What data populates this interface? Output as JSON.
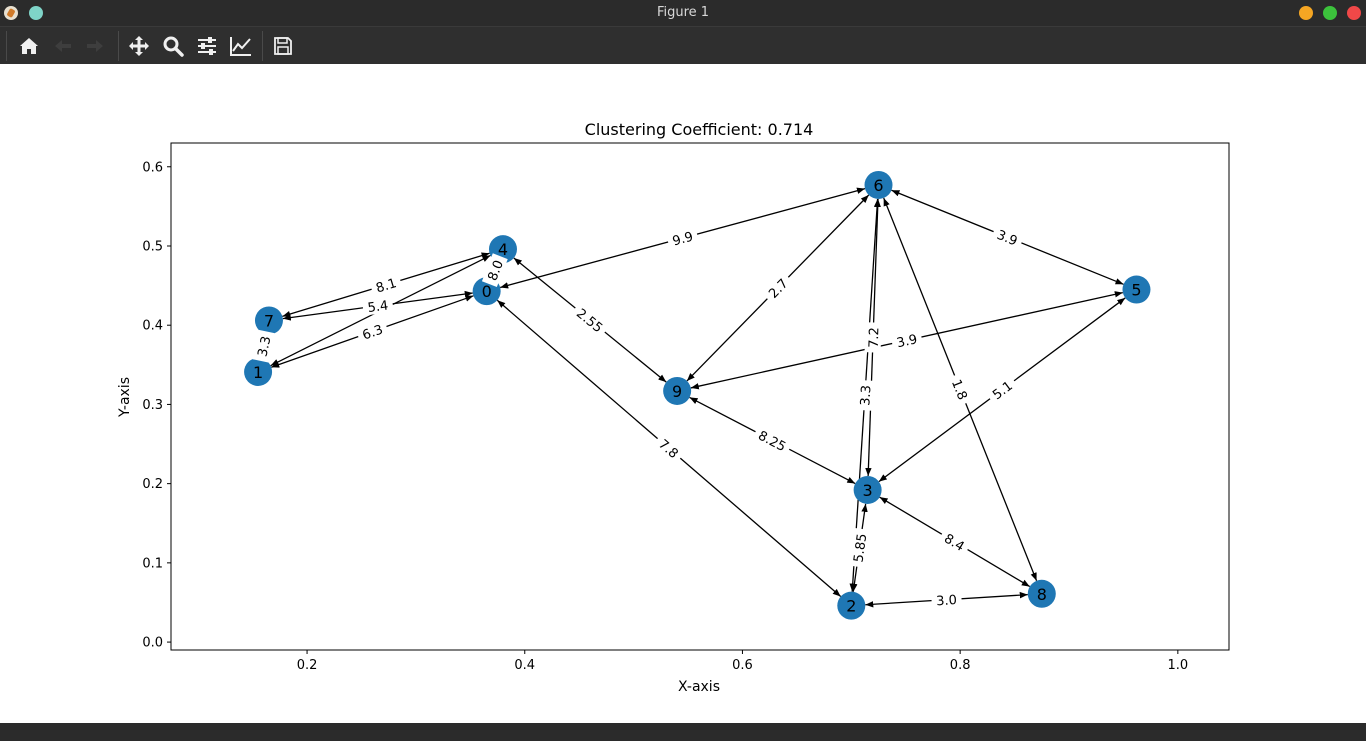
{
  "window": {
    "title": "Figure 1"
  },
  "toolbar": {
    "buttons": [
      {
        "name": "home-button",
        "icon": "home-icon"
      },
      {
        "name": "back-button",
        "icon": "arrow-left-icon"
      },
      {
        "name": "forward-button",
        "icon": "arrow-right-icon"
      },
      {
        "name": "pan-button",
        "icon": "move-icon"
      },
      {
        "name": "zoom-button",
        "icon": "search-icon"
      },
      {
        "name": "configure-subplots-button",
        "icon": "sliders-icon"
      },
      {
        "name": "edit-axis-button",
        "icon": "chart-line-icon"
      },
      {
        "name": "save-button",
        "icon": "floppy-disk-icon"
      }
    ]
  },
  "colors": {
    "node": "#1f77b4",
    "edge": "#000000",
    "titlebar": "#2b2b2b",
    "toolbar": "#2f2f2f"
  },
  "chart_data": {
    "type": "scatter",
    "title": "Clustering Coefficient: 0.714",
    "xlabel": "X-axis",
    "ylabel": "Y-axis",
    "xlim": [
      0.075,
      1.047
    ],
    "ylim": [
      -0.01,
      0.63
    ],
    "xticks": [
      "0.2",
      "0.4",
      "0.6",
      "0.8",
      "1.0"
    ],
    "yticks": [
      "0.0",
      "0.1",
      "0.2",
      "0.3",
      "0.4",
      "0.5",
      "0.6"
    ],
    "grid": false,
    "nodes": [
      {
        "id": "0",
        "x": 0.365,
        "y": 0.443
      },
      {
        "id": "1",
        "x": 0.155,
        "y": 0.341
      },
      {
        "id": "2",
        "x": 0.7,
        "y": 0.046
      },
      {
        "id": "3",
        "x": 0.715,
        "y": 0.192
      },
      {
        "id": "4",
        "x": 0.38,
        "y": 0.496
      },
      {
        "id": "5",
        "x": 0.962,
        "y": 0.445
      },
      {
        "id": "6",
        "x": 0.725,
        "y": 0.577
      },
      {
        "id": "7",
        "x": 0.165,
        "y": 0.406
      },
      {
        "id": "8",
        "x": 0.875,
        "y": 0.061
      },
      {
        "id": "9",
        "x": 0.54,
        "y": 0.317
      }
    ],
    "edges": [
      {
        "source": "4",
        "target": "7",
        "label": "8.1"
      },
      {
        "source": "0",
        "target": "7",
        "label": "5.4"
      },
      {
        "source": "1",
        "target": "0",
        "label": "6.3"
      },
      {
        "source": "4",
        "target": "1",
        "label": ""
      },
      {
        "source": "7",
        "target": "1",
        "label": "3.3"
      },
      {
        "source": "4",
        "target": "0",
        "label": "8.0"
      },
      {
        "source": "6",
        "target": "0",
        "label": "9.9"
      },
      {
        "source": "0",
        "target": "2",
        "label": "7.8"
      },
      {
        "source": "4",
        "target": "9",
        "label": "2.55"
      },
      {
        "source": "6",
        "target": "9",
        "label": "2.7"
      },
      {
        "source": "5",
        "target": "9",
        "label": "3.9"
      },
      {
        "source": "9",
        "target": "3",
        "label": "8.25"
      },
      {
        "source": "5",
        "target": "6",
        "label": "3.9"
      },
      {
        "source": "6",
        "target": "3",
        "label": "7.2"
      },
      {
        "source": "6",
        "target": "2",
        "label": "3.3"
      },
      {
        "source": "6",
        "target": "8",
        "label": "1.8"
      },
      {
        "source": "5",
        "target": "3",
        "label": "5.1"
      },
      {
        "source": "3",
        "target": "8",
        "label": "8.4"
      },
      {
        "source": "2",
        "target": "3",
        "label": "5.85"
      },
      {
        "source": "2",
        "target": "8",
        "label": "3.0"
      }
    ]
  }
}
